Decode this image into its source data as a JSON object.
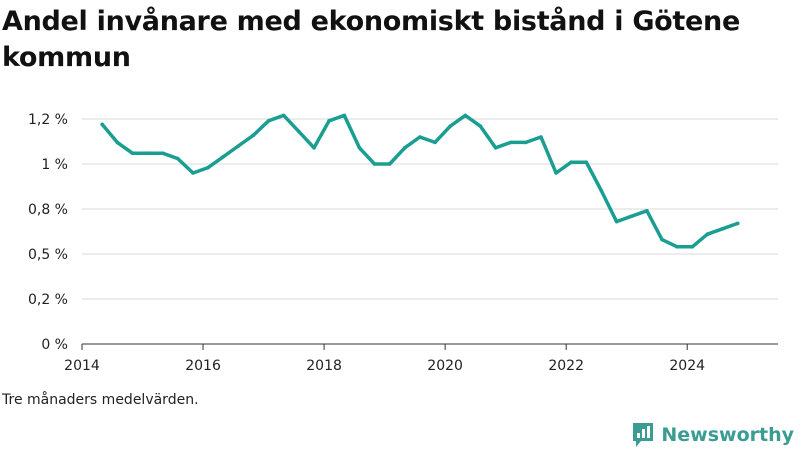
{
  "chart_data": {
    "type": "line",
    "title": "Andel invånare med ekonomiskt bistånd i Götene kommun",
    "xlabel": "",
    "ylabel": "",
    "x_ticks": [
      "2014",
      "2016",
      "2018",
      "2020",
      "2022",
      "2024"
    ],
    "y_ticks": [
      {
        "value": 0,
        "label": "0 %"
      },
      {
        "value": 0.25,
        "label": "0,2 %"
      },
      {
        "value": 0.5,
        "label": "0,5 %"
      },
      {
        "value": 0.75,
        "label": "0,8 %"
      },
      {
        "value": 1.0,
        "label": "1 %"
      },
      {
        "value": 1.25,
        "label": "1,2 %"
      }
    ],
    "xlim": [
      "2014-01",
      "2025-07"
    ],
    "ylim": [
      0,
      1.3
    ],
    "grid": "horizontal",
    "color": "#1a9e92",
    "series": [
      {
        "x": [
          "2014-05",
          "2014-08",
          "2014-11",
          "2015-02",
          "2015-05",
          "2015-08",
          "2015-11",
          "2016-02",
          "2016-05",
          "2016-08",
          "2016-11",
          "2017-02",
          "2017-05",
          "2017-08",
          "2017-11",
          "2018-02",
          "2018-05",
          "2018-08",
          "2018-11",
          "2019-02",
          "2019-05",
          "2019-08",
          "2019-11",
          "2020-02",
          "2020-05",
          "2020-08",
          "2020-11",
          "2021-02",
          "2021-05",
          "2021-08",
          "2021-11",
          "2022-02",
          "2022-05",
          "2022-08",
          "2022-11",
          "2023-02",
          "2023-05",
          "2023-08",
          "2023-11",
          "2024-02",
          "2024-05",
          "2024-08",
          "2024-11"
        ],
        "values": [
          1.22,
          1.12,
          1.06,
          1.06,
          1.06,
          1.03,
          0.95,
          0.98,
          1.04,
          1.1,
          1.16,
          1.24,
          1.27,
          1.18,
          1.09,
          1.24,
          1.27,
          1.09,
          1.0,
          1.0,
          1.09,
          1.15,
          1.12,
          1.21,
          1.27,
          1.21,
          1.09,
          1.12,
          1.12,
          1.15,
          0.95,
          1.01,
          1.01,
          0.85,
          0.68,
          0.71,
          0.74,
          0.58,
          0.54,
          0.54,
          0.61,
          0.64,
          0.67
        ]
      }
    ]
  },
  "caption": "Tre månaders medelvärden.",
  "brand": {
    "name": "Newsworthy",
    "icon": "newsworthy-logo-icon"
  }
}
